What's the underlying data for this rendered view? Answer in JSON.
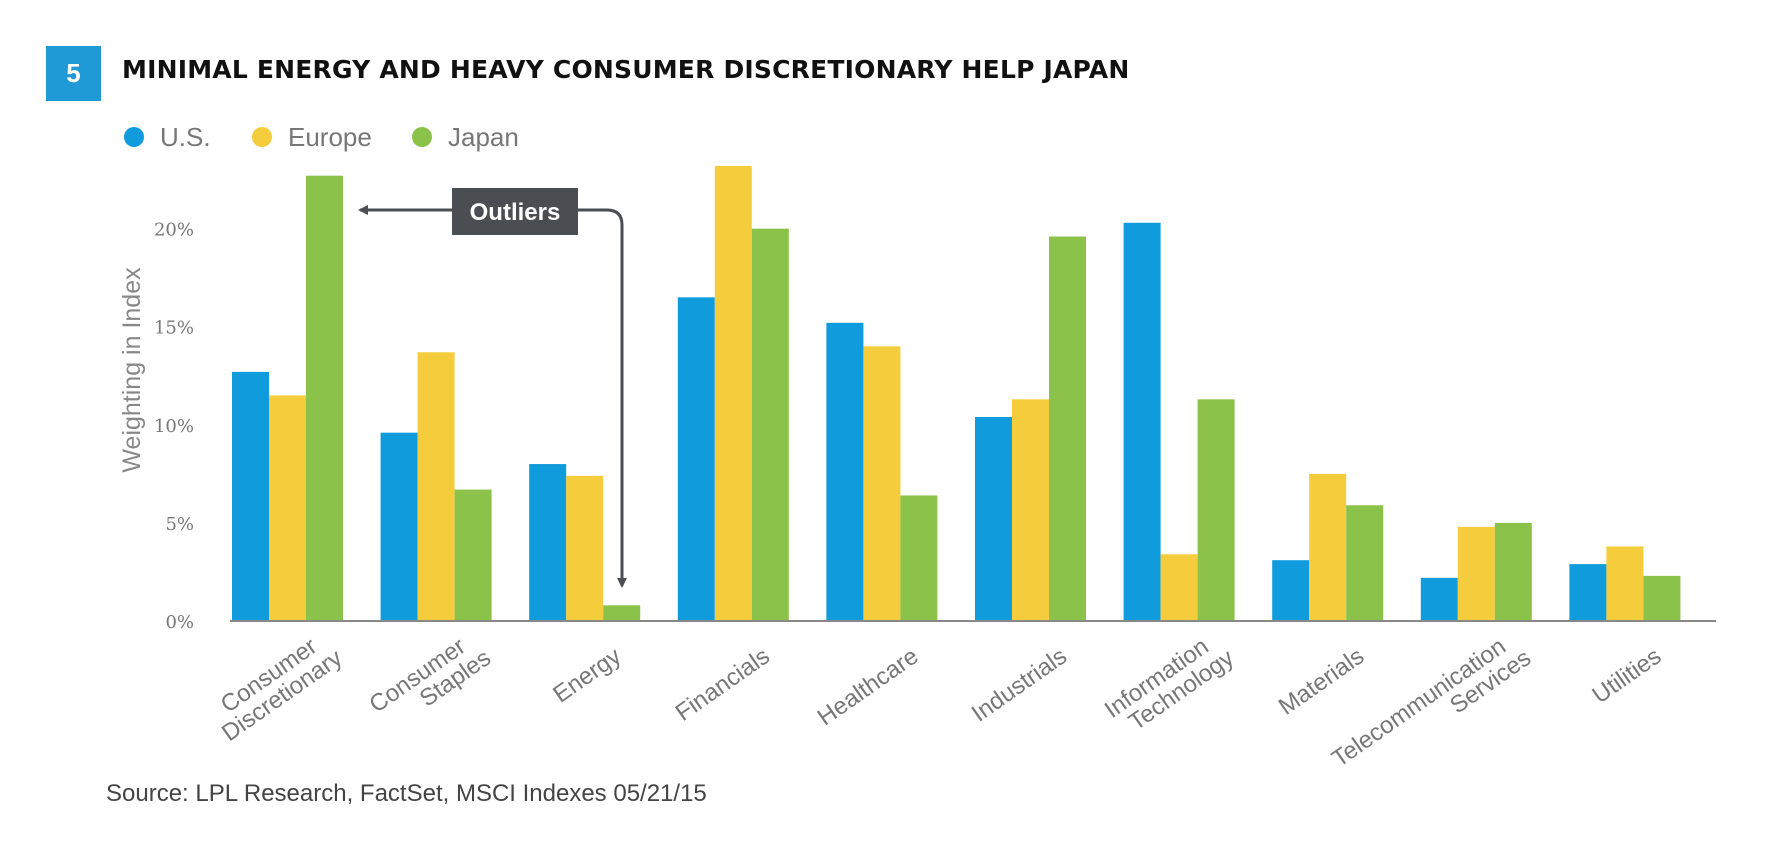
{
  "header": {
    "badge": "5",
    "title": "MINIMAL ENERGY AND HEAVY CONSUMER DISCRETIONARY HELP JAPAN"
  },
  "source": "Source: LPL Research, FactSet, MSCI Indexes  05/21/15",
  "callout": {
    "label": "Outliers"
  },
  "colors": {
    "accent": "#1f9ad6",
    "us": "#0f9bdc",
    "europe": "#f5cd3c",
    "japan": "#8bc34a",
    "callout_bg": "#4a4d52",
    "axis": "#888888"
  },
  "chart_data": {
    "type": "bar",
    "title": "MINIMAL ENERGY AND HEAVY CONSUMER DISCRETIONARY HELP JAPAN",
    "xlabel": "",
    "ylabel": "Weighting in Index",
    "ylim": [
      0,
      23.5
    ],
    "yticks": [
      0,
      5,
      10,
      15,
      20
    ],
    "ytick_labels": [
      "0%",
      "5%",
      "10%",
      "15%",
      "20%"
    ],
    "legend_position": "top-left",
    "grid": false,
    "categories": [
      [
        "Consumer",
        "Discretionary"
      ],
      [
        "Consumer",
        "Staples"
      ],
      [
        "Energy"
      ],
      [
        "Financials"
      ],
      [
        "Healthcare"
      ],
      [
        "Industrials"
      ],
      [
        "Information",
        "Technology"
      ],
      [
        "Materials"
      ],
      [
        "Telecommunication",
        "Services"
      ],
      [
        "Utilities"
      ]
    ],
    "series": [
      {
        "name": "U.S.",
        "color": "#0f9bdc",
        "values": [
          12.7,
          9.6,
          8.0,
          16.5,
          15.2,
          10.4,
          20.3,
          3.1,
          2.2,
          2.9
        ]
      },
      {
        "name": "Europe",
        "color": "#f5cd3c",
        "values": [
          11.5,
          13.7,
          7.4,
          23.2,
          14.0,
          11.3,
          3.4,
          7.5,
          4.8,
          3.8
        ]
      },
      {
        "name": "Japan",
        "color": "#8bc34a",
        "values": [
          22.7,
          6.7,
          0.8,
          20.0,
          6.4,
          19.6,
          11.3,
          5.9,
          5.0,
          2.3
        ]
      }
    ]
  }
}
